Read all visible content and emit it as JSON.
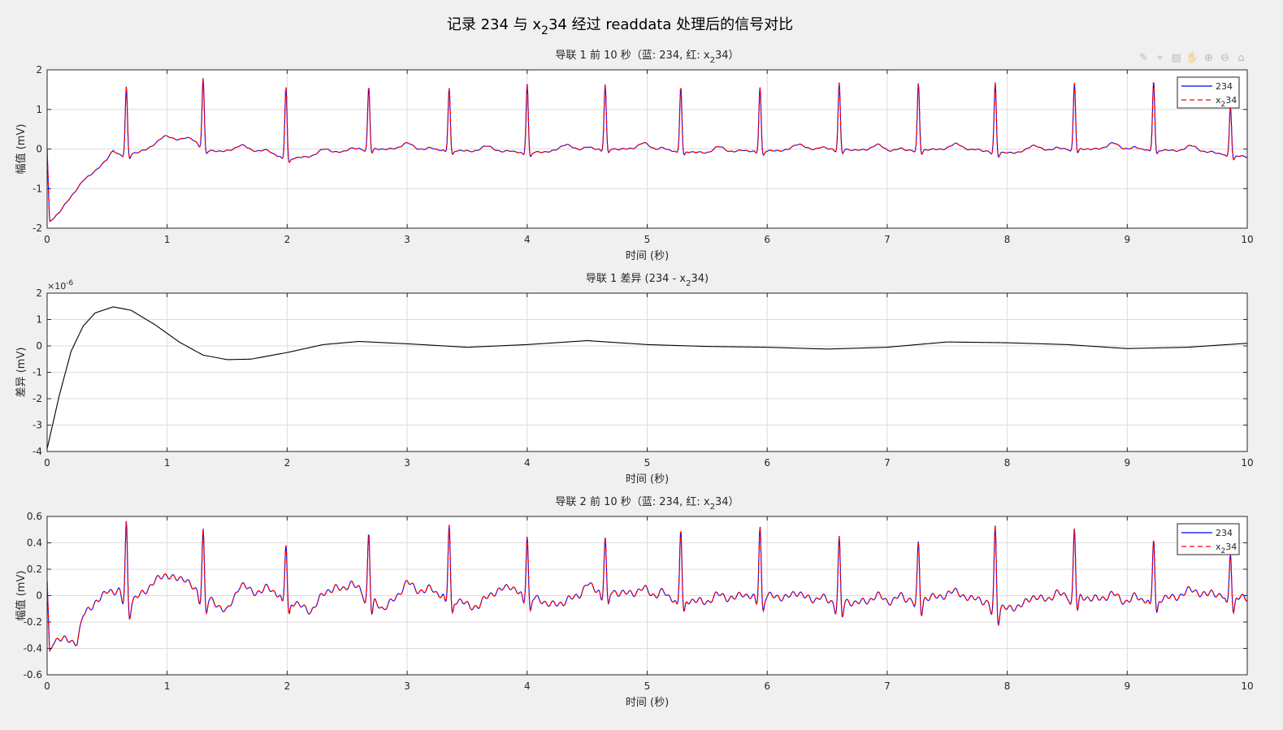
{
  "figure": {
    "title": {
      "pre": "记录 234 与 x",
      "sub": "2",
      "post": "34 经过 readdata 处理后的信号对比"
    }
  },
  "toolbar": {
    "icons": [
      "brush-icon",
      "data-tip-icon",
      "copy-icon",
      "pan-icon",
      "zoom-in-icon",
      "zoom-out-icon",
      "home-icon"
    ],
    "glyphs": [
      "✎",
      "⌖",
      "▤",
      "✋",
      "⊕",
      "⊖",
      "⌂"
    ]
  },
  "chart_data": [
    {
      "type": "line",
      "title": {
        "pre": "导联 1 前 10 秒（蓝: 234, 红: x",
        "sub": "2",
        "post": "34）"
      },
      "xlabel": "时间 (秒)",
      "ylabel": "幅值 (mV)",
      "xlim": [
        0,
        10
      ],
      "ylim": [
        -2,
        2
      ],
      "xticks": [
        "0",
        "1",
        "2",
        "3",
        "4",
        "5",
        "6",
        "7",
        "8",
        "9",
        "10"
      ],
      "yticks": [
        "-2",
        "-1",
        "0",
        "1",
        "2"
      ],
      "grid": true,
      "legend": {
        "position": "top-right",
        "entries": [
          {
            "label_pre": "234",
            "label_sub": "",
            "label_post": ""
          },
          {
            "label_pre": "x",
            "label_sub": "2",
            "label_post": "34"
          }
        ]
      },
      "r_peaks_s": [
        0.66,
        1.3,
        1.99,
        2.68,
        3.35,
        4.0,
        4.65,
        5.28,
        5.94,
        6.6,
        7.26,
        7.9,
        8.56,
        9.22,
        9.86
      ],
      "r_peak_mV": [
        1.58,
        1.79,
        1.58,
        1.58,
        1.55,
        1.66,
        1.63,
        1.58,
        1.58,
        1.67,
        1.66,
        1.68,
        1.68,
        1.73,
        1.1
      ],
      "baseline_points": [
        [
          0,
          0.0
        ],
        [
          0.02,
          -1.85
        ],
        [
          0.1,
          -1.6
        ],
        [
          0.3,
          -0.8
        ],
        [
          0.5,
          -0.3
        ],
        [
          0.55,
          -0.05
        ],
        [
          0.6,
          -0.15
        ],
        [
          0.75,
          -0.1
        ],
        [
          0.9,
          0.1
        ],
        [
          1.0,
          0.2
        ],
        [
          1.2,
          0.25
        ],
        [
          1.35,
          -0.05
        ],
        [
          1.5,
          -0.05
        ],
        [
          1.8,
          -0.05
        ],
        [
          2.0,
          -0.25
        ],
        [
          2.3,
          -0.15
        ],
        [
          2.6,
          0.0
        ],
        [
          3.0,
          0.0
        ],
        [
          3.5,
          -0.05
        ],
        [
          4.0,
          -0.1
        ],
        [
          4.5,
          0.0
        ],
        [
          5.0,
          0.0
        ],
        [
          5.5,
          -0.1
        ],
        [
          6.0,
          -0.05
        ],
        [
          6.5,
          0.0
        ],
        [
          7.0,
          -0.05
        ],
        [
          7.5,
          0.0
        ],
        [
          8.0,
          -0.1
        ],
        [
          8.5,
          0.0
        ],
        [
          9.0,
          0.0
        ],
        [
          9.5,
          -0.05
        ],
        [
          10.0,
          -0.2
        ]
      ],
      "series": [
        {
          "name": "234",
          "color": "#0000ff",
          "style": "solid"
        },
        {
          "name": "x234",
          "color": "#ff0000",
          "style": "dashed"
        }
      ]
    },
    {
      "type": "line",
      "title": {
        "pre": "导联 1 差异 (234 - x",
        "sub": "2",
        "post": "34)"
      },
      "xlabel": "时间 (秒)",
      "ylabel": "差异 (mV)",
      "exponent": {
        "pre": "×10",
        "sup": "-6"
      },
      "xlim": [
        0,
        10
      ],
      "ylim": [
        -4,
        2
      ],
      "xticks": [
        "0",
        "1",
        "2",
        "3",
        "4",
        "5",
        "6",
        "7",
        "8",
        "9",
        "10"
      ],
      "yticks": [
        "-4",
        "-3",
        "-2",
        "-1",
        "0",
        "1",
        "2"
      ],
      "grid": true,
      "points": [
        [
          0,
          -3.9
        ],
        [
          0.1,
          -1.9
        ],
        [
          0.2,
          -0.2
        ],
        [
          0.3,
          0.75
        ],
        [
          0.4,
          1.25
        ],
        [
          0.55,
          1.48
        ],
        [
          0.7,
          1.35
        ],
        [
          0.9,
          0.8
        ],
        [
          1.1,
          0.15
        ],
        [
          1.3,
          -0.35
        ],
        [
          1.5,
          -0.52
        ],
        [
          1.7,
          -0.5
        ],
        [
          2.0,
          -0.25
        ],
        [
          2.3,
          0.05
        ],
        [
          2.6,
          0.17
        ],
        [
          3.0,
          0.08
        ],
        [
          3.5,
          -0.05
        ],
        [
          4.0,
          0.05
        ],
        [
          4.5,
          0.2
        ],
        [
          5.0,
          0.05
        ],
        [
          5.5,
          -0.02
        ],
        [
          6.0,
          -0.05
        ],
        [
          6.5,
          -0.12
        ],
        [
          7.0,
          -0.05
        ],
        [
          7.5,
          0.15
        ],
        [
          8.0,
          0.12
        ],
        [
          8.5,
          0.05
        ],
        [
          9.0,
          -0.1
        ],
        [
          9.5,
          -0.05
        ],
        [
          10.0,
          0.1
        ]
      ],
      "series": [
        {
          "name": "",
          "color": "#000000",
          "style": "solid"
        }
      ]
    },
    {
      "type": "line",
      "title": {
        "pre": "导联 2 前 10 秒（蓝: 234, 红: x",
        "sub": "2",
        "post": "34）"
      },
      "xlabel": "时间 (秒)",
      "ylabel": "幅值 (mV)",
      "xlim": [
        0,
        10
      ],
      "ylim": [
        -0.6,
        0.6
      ],
      "xticks": [
        "0",
        "1",
        "2",
        "3",
        "4",
        "5",
        "6",
        "7",
        "8",
        "9",
        "10"
      ],
      "yticks": [
        "-0.6",
        "-0.4",
        "-0.2",
        "0",
        "0.2",
        "0.4",
        "0.6"
      ],
      "grid": true,
      "legend": {
        "position": "top-right",
        "entries": [
          {
            "label_pre": "234",
            "label_sub": "",
            "label_post": ""
          },
          {
            "label_pre": "x",
            "label_sub": "2",
            "label_post": "34"
          }
        ]
      },
      "r_peaks_s": [
        0.66,
        1.3,
        1.99,
        2.68,
        3.35,
        4.0,
        4.65,
        5.28,
        5.94,
        6.6,
        7.26,
        7.9,
        8.56,
        9.22,
        9.86
      ],
      "r_peak_mV": [
        0.56,
        0.51,
        0.4,
        0.48,
        0.55,
        0.47,
        0.44,
        0.51,
        0.54,
        0.44,
        0.4,
        0.53,
        0.52,
        0.44,
        0.35
      ],
      "baseline_points": [
        [
          0,
          0.1
        ],
        [
          0.02,
          -0.45
        ],
        [
          0.05,
          -0.35
        ],
        [
          0.1,
          -0.32
        ],
        [
          0.2,
          -0.35
        ],
        [
          0.25,
          -0.35
        ],
        [
          0.3,
          -0.15
        ],
        [
          0.4,
          -0.05
        ],
        [
          0.5,
          0.0
        ],
        [
          0.6,
          0.03
        ],
        [
          0.7,
          -0.05
        ],
        [
          0.9,
          0.1
        ],
        [
          1.1,
          0.12
        ],
        [
          1.3,
          0.0
        ],
        [
          1.5,
          -0.12
        ],
        [
          1.6,
          0.03
        ],
        [
          1.9,
          0.02
        ],
        [
          2.2,
          -0.12
        ],
        [
          2.4,
          0.05
        ],
        [
          2.6,
          0.05
        ],
        [
          2.8,
          -0.1
        ],
        [
          3.0,
          0.05
        ],
        [
          3.3,
          0.0
        ],
        [
          3.6,
          -0.1
        ],
        [
          3.8,
          0.05
        ],
        [
          4.0,
          0.0
        ],
        [
          4.3,
          -0.1
        ],
        [
          4.5,
          0.05
        ],
        [
          5.0,
          0.0
        ],
        [
          5.5,
          -0.05
        ],
        [
          6.0,
          0.0
        ],
        [
          6.5,
          -0.05
        ],
        [
          7.0,
          -0.05
        ],
        [
          7.5,
          0.0
        ],
        [
          8.0,
          -0.1
        ],
        [
          8.5,
          0.0
        ],
        [
          9.0,
          -0.05
        ],
        [
          9.5,
          0.0
        ],
        [
          10.0,
          -0.02
        ]
      ],
      "series": [
        {
          "name": "234",
          "color": "#0000ff",
          "style": "solid"
        },
        {
          "name": "x234",
          "color": "#ff0000",
          "style": "dashed"
        }
      ]
    }
  ]
}
